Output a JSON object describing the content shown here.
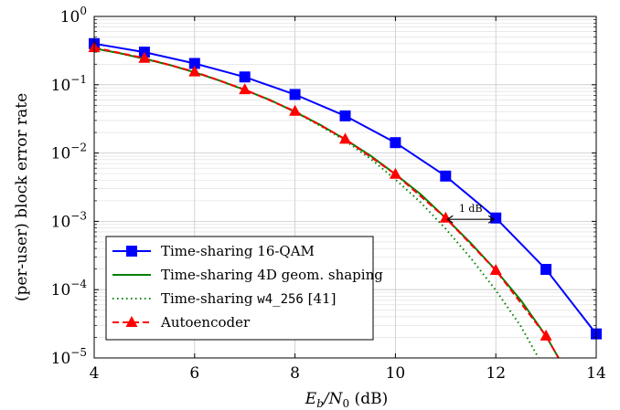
{
  "chart_data": {
    "type": "line",
    "ylabel": "(per-user) block error rate",
    "xlabel_main": "E",
    "xlabel_sub1": "b",
    "xlabel_slash": "/N",
    "xlabel_sub2": "0",
    "xlabel_unit": " (dB)",
    "xlim": [
      4,
      14
    ],
    "ylim": [
      1e-05,
      1
    ],
    "y_scale": "log",
    "grid": true,
    "legend_position": "lower-left",
    "x_ticks": [
      "4",
      "6",
      "8",
      "10",
      "12",
      "14"
    ],
    "y_tick_exponents": [
      "0",
      "−1",
      "−2",
      "−3",
      "−4",
      "−5"
    ],
    "y_tick_base": "10",
    "series": [
      {
        "name": "Time-sharing 16-QAM",
        "color": "#0000ff",
        "dash": "solid",
        "marker": "square",
        "x": [
          4,
          5,
          6,
          7,
          8,
          9,
          10,
          11,
          12,
          13,
          14
        ],
        "y": [
          0.4,
          0.3,
          0.205,
          0.13,
          0.072,
          0.035,
          0.0142,
          0.0046,
          0.00112,
          0.000198,
          2.25e-05
        ]
      },
      {
        "name": "Time-sharing 4D geom. shaping",
        "color": "#008000",
        "dash": "solid",
        "marker": "none",
        "x": [
          4,
          4.5,
          5,
          5.5,
          6,
          6.5,
          7,
          7.5,
          8,
          8.5,
          9,
          9.5,
          10,
          10.5,
          11,
          11.5,
          12,
          12.5,
          13,
          13.25
        ],
        "y": [
          0.34,
          0.29,
          0.24,
          0.195,
          0.152,
          0.115,
          0.084,
          0.06,
          0.04,
          0.026,
          0.0158,
          0.0092,
          0.0049,
          0.0025,
          0.00112,
          0.00048,
          0.000192,
          7e-05,
          2.1e-05,
          1e-05
        ]
      },
      {
        "name": "Time-sharing ",
        "name_mono": "w4_256",
        "name_ref": " [41]",
        "color": "#008000",
        "dash": "dotted",
        "marker": "none",
        "x": [
          4,
          4.5,
          5,
          5.5,
          6,
          6.5,
          7,
          7.5,
          8,
          8.5,
          9,
          9.5,
          10,
          10.5,
          11,
          11.5,
          12,
          12.5,
          12.85
        ],
        "y": [
          0.34,
          0.29,
          0.24,
          0.195,
          0.152,
          0.115,
          0.084,
          0.06,
          0.04,
          0.025,
          0.0152,
          0.0083,
          0.0041,
          0.0019,
          0.00078,
          0.00029,
          9.8e-05,
          2.9e-05,
          1e-05
        ]
      },
      {
        "name": "Autoencoder",
        "color": "#ff0000",
        "dash": "dashed",
        "marker": "triangle",
        "x": [
          4,
          5,
          6,
          7,
          8,
          9,
          10,
          11,
          12,
          13,
          13.25
        ],
        "y": [
          0.35,
          0.245,
          0.155,
          0.085,
          0.041,
          0.016,
          0.0049,
          0.00112,
          0.000192,
          2.1e-05,
          1e-05
        ],
        "marker_count": 10
      }
    ],
    "annotation": {
      "text": "1 dB",
      "x_from": 11,
      "x_to": 12,
      "y": 0.00107
    }
  }
}
